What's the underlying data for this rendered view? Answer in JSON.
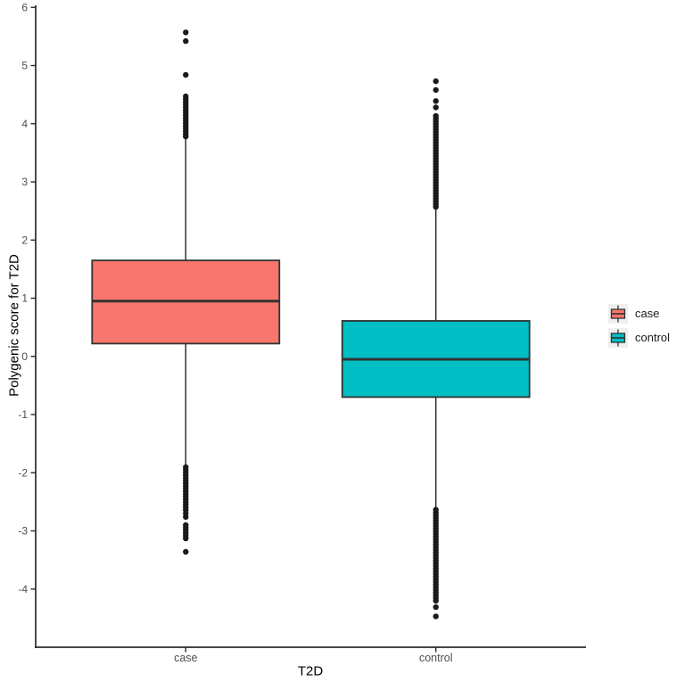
{
  "chart_data": {
    "type": "boxplot",
    "title": "",
    "xlabel": "T2D",
    "ylabel": "Polygenic score for T2D",
    "categories": [
      "case",
      "control"
    ],
    "y_ticks": [
      -4,
      -3,
      -2,
      -1,
      0,
      1,
      2,
      3,
      4,
      5,
      6
    ],
    "ylim": [
      -5.0,
      6.05
    ],
    "grid": "off",
    "legend_position": "right",
    "colors": {
      "axis_line": "#2b2b2b",
      "tick_label": "#4d4d4d",
      "box_outline": "#333333",
      "outlier_point": "#1a1a1a",
      "legend_key_bg": "#efefef",
      "background": "#ffffff"
    },
    "series": [
      {
        "name": "case",
        "fill": "#F8766D",
        "box": {
          "q1": 0.22,
          "median": 0.95,
          "q3": 1.65,
          "whisker_low": -1.87,
          "whisker_high": 3.78
        },
        "outlier_clusters": [
          [
            3.78,
            4.48
          ],
          [
            -2.64,
            -1.87
          ],
          [
            -3.13,
            -2.9
          ]
        ],
        "outlier_points": [
          4.84,
          5.42,
          5.57,
          -2.7,
          -2.76,
          -3.36
        ]
      },
      {
        "name": "control",
        "fill": "#00BFC4",
        "box": {
          "q1": -0.7,
          "median": -0.05,
          "q3": 0.61,
          "whisker_low": -2.63,
          "whisker_high": 2.57
        },
        "outlier_clusters": [
          [
            2.57,
            4.17
          ],
          [
            -4.2,
            -2.63
          ]
        ],
        "outlier_points": [
          4.28,
          4.39,
          4.58,
          4.73,
          -4.31,
          -4.47
        ]
      }
    ]
  }
}
